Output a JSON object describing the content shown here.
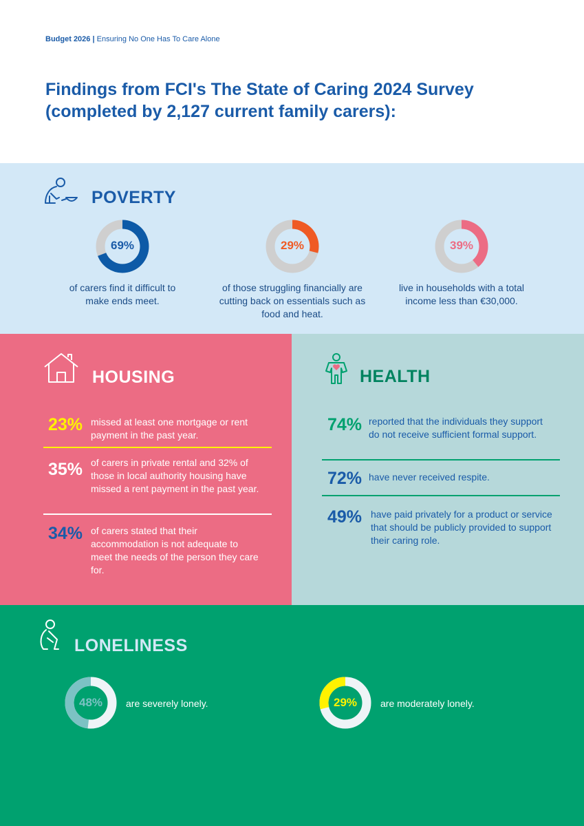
{
  "header": {
    "budget": "Budget 2026",
    "separator": "|",
    "subtitle": "Ensuring No One Has To Care Alone"
  },
  "title": "Findings from FCI's The State of Caring 2024 Survey (completed by 2,127 current family carers):",
  "poverty": {
    "heading": "POVERTY",
    "icon": "person-with-bowl-icon",
    "stats": [
      {
        "percent": 69,
        "label": "69%",
        "text": "of carers find it difficult to make ends meet.",
        "color": "#0d5aa7"
      },
      {
        "percent": 29,
        "label": "29%",
        "text": "of those struggling financially are cutting back on essentials such as food and heat.",
        "color": "#ef5a24"
      },
      {
        "percent": 39,
        "label": "39%",
        "text": "live in households with a total income less than €30,000.",
        "color": "#ec6c84"
      }
    ]
  },
  "housing": {
    "heading": "HOUSING",
    "icon": "house-icon",
    "stats": [
      {
        "label": "23%",
        "text": "missed at least one mortgage or rent payment in the past year.",
        "color": "#fff200"
      },
      {
        "label": "35%",
        "text": "of carers in private rental and 32% of those in local authority housing have missed a rent payment in the past year.",
        "color": "#ffffff"
      },
      {
        "label": "34%",
        "text": "of carers stated that their accommodation is not adequate to meet the needs of the person they care for.",
        "color": "#1a5ba8"
      }
    ]
  },
  "health": {
    "heading": "HEALTH",
    "icon": "person-heart-icon",
    "stats": [
      {
        "label": "74%",
        "text": "reported that the individuals they support do not receive sufficient formal support.",
        "color": "#00a16f"
      },
      {
        "label": "72%",
        "text": "have never received respite.",
        "color": "#1a5ba8"
      },
      {
        "label": "49%",
        "text": "have paid privately for a product or service that should be publicly provided to support their caring role.",
        "color": "#1a5ba8"
      }
    ]
  },
  "loneliness": {
    "heading": "LONELINESS",
    "icon": "sitting-person-icon",
    "stats": [
      {
        "percent": 48,
        "label": "48%",
        "text": "are severely lonely.",
        "color": "#7cc2c4"
      },
      {
        "percent": 29,
        "label": "29%",
        "text": "are moderately lonely.",
        "color": "#fff200"
      }
    ]
  }
}
